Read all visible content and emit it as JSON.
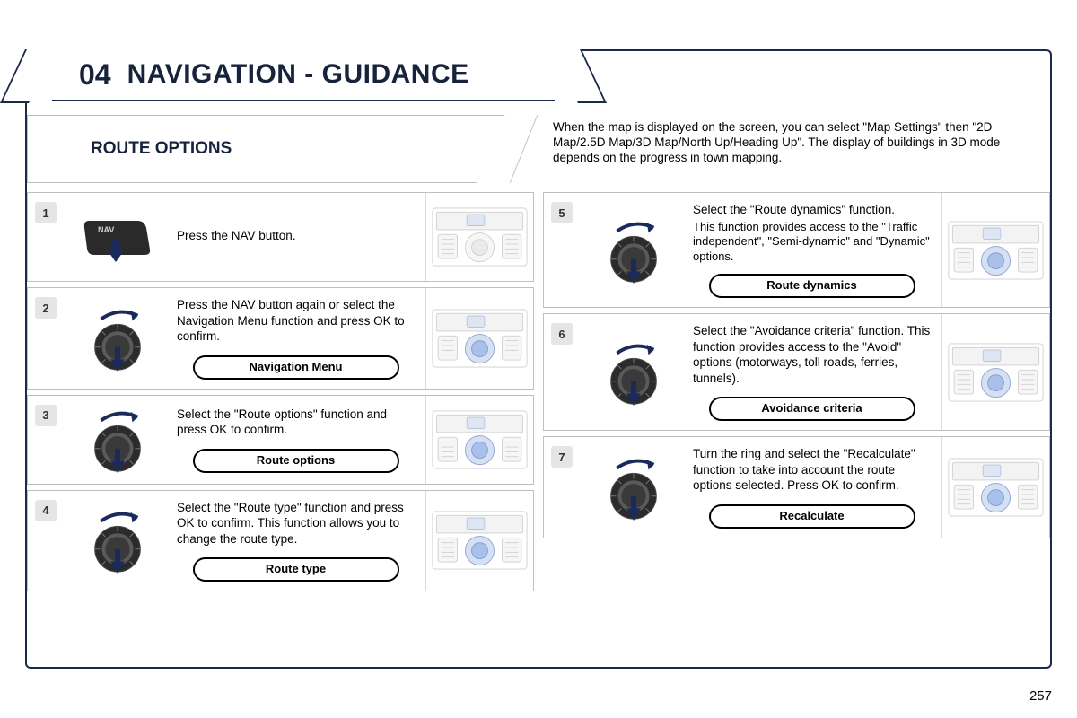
{
  "chapter_number": "04",
  "chapter_title": "NAVIGATION - GUIDANCE",
  "section_title": "ROUTE OPTIONS",
  "intro_note": "When the map is displayed on the screen, you can select \"Map Settings\" then \"2D Map/2.5D Map/3D Map/North Up/Heading Up\". The display of buildings in 3D mode depends on the progress in town mapping.",
  "page_number": "257",
  "colors": {
    "frame": "#1a2a4a",
    "rule": "#bfbfbf",
    "badge_bg": "#e5e5e5",
    "dial_tire": "#2b2b2b",
    "dial_hub": "#5a5a5a",
    "pointer": "#1a2a5a",
    "console_stroke": "#bdbdbd",
    "highlight": "#9db8e8"
  },
  "left_steps": [
    {
      "n": "1",
      "icon": "navbtn",
      "desc": "Press the NAV button.",
      "pill": null,
      "highlight": false,
      "nav_label": "NAV"
    },
    {
      "n": "2",
      "icon": "dial",
      "desc": "Press the NAV button again or select the Navigation Menu function and press OK to confirm.",
      "pill": "Navigation Menu",
      "highlight": true
    },
    {
      "n": "3",
      "icon": "dial",
      "desc": "Select the \"Route options\" function and press OK to confirm.",
      "pill": "Route options",
      "highlight": true
    },
    {
      "n": "4",
      "icon": "dial",
      "desc": "Select the \"Route type\" function and press OK to confirm. This function allows you to change the route type.",
      "pill": "Route type",
      "highlight": true
    }
  ],
  "right_steps": [
    {
      "n": "5",
      "icon": "dial",
      "desc": "Select the \"Route dynamics\" function.",
      "sub": "This function provides access to the \"Traffic independent\", \"Semi-dynamic\" and \"Dynamic\" options.",
      "pill": "Route dynamics",
      "highlight": true
    },
    {
      "n": "6",
      "icon": "dial",
      "desc": "Select the \"Avoidance criteria\" function. This function provides access to the \"Avoid\" options (motorways, toll roads, ferries, tunnels).",
      "pill": "Avoidance criteria",
      "highlight": true
    },
    {
      "n": "7",
      "icon": "dial",
      "desc": "Turn the ring and select the \"Recalculate\" function to take into account the route options selected. Press OK to confirm.",
      "pill": "Recalculate",
      "highlight": true
    }
  ]
}
